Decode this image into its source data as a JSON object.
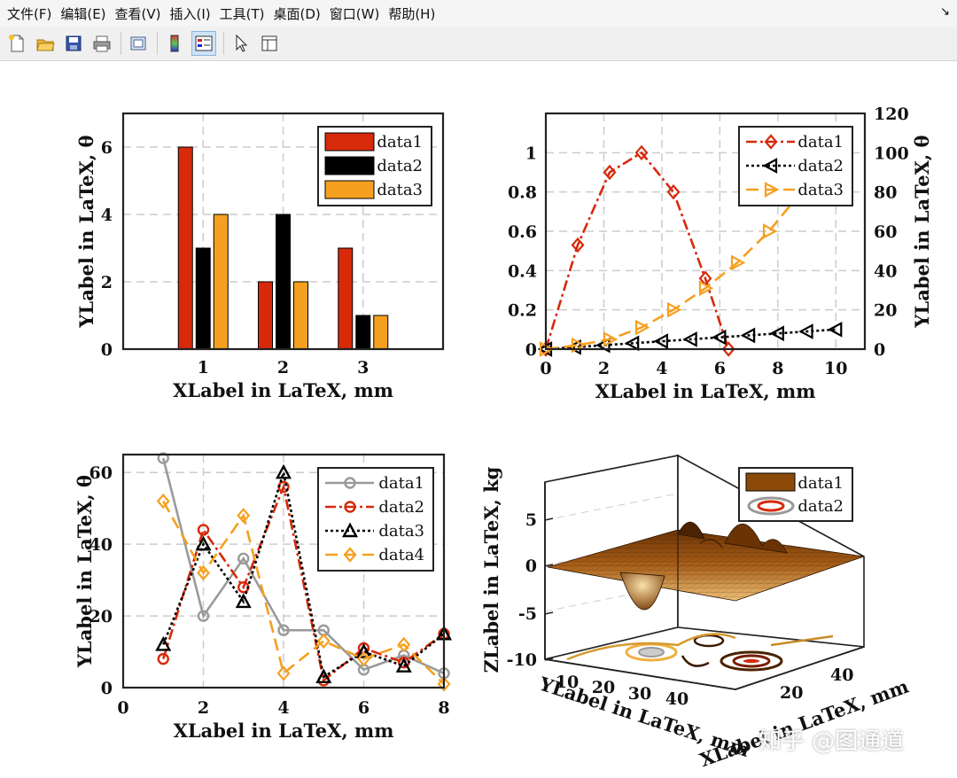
{
  "menu": [
    "文件(F)",
    "编辑(E)",
    "查看(V)",
    "插入(I)",
    "工具(T)",
    "桌面(D)",
    "窗口(W)",
    "帮助(H)"
  ],
  "menu_arrow": "↘",
  "toolbar": {
    "icons": [
      "new-file-icon",
      "open-folder-icon",
      "save-icon",
      "print-icon",
      "print-preview-icon",
      "colorbar-icon",
      "legend-icon",
      "pointer-icon",
      "property-inspector-icon"
    ]
  },
  "watermark": "知乎 @图通道",
  "colors": {
    "red": "#d62a0b",
    "black": "#000000",
    "orange": "#f5a020",
    "gray": "#9a9a9a",
    "surface": "#8b4a0a"
  },
  "chart_data": [
    {
      "type": "bar",
      "categories": [
        "1",
        "2",
        "3"
      ],
      "series": [
        {
          "name": "data1",
          "values": [
            6,
            2,
            3
          ]
        },
        {
          "name": "data2",
          "values": [
            3,
            4,
            1
          ]
        },
        {
          "name": "data3",
          "values": [
            4,
            2,
            1
          ]
        }
      ],
      "xlabel": "XLabel in LaTeX, mm",
      "ylabel": "YLabel in LaTeX, θ",
      "xlim": [
        0,
        4
      ],
      "ylim": [
        0,
        7
      ],
      "yticks": [
        "0",
        "2",
        "4",
        "6"
      ],
      "grid": true,
      "legend": "top-right"
    },
    {
      "type": "line",
      "series": [
        {
          "name": "data1",
          "axis": "left",
          "x": [
            0,
            1.1,
            2.2,
            3.3,
            4.4,
            5.5,
            6.3
          ],
          "y": [
            0,
            0.53,
            0.9,
            1.0,
            0.8,
            0.36,
            0
          ]
        },
        {
          "name": "data2",
          "axis": "right",
          "x": [
            0,
            1,
            2,
            3,
            4,
            5,
            6,
            7,
            8,
            9,
            10
          ],
          "y": [
            0,
            1,
            2,
            3,
            4,
            5,
            6,
            7,
            8,
            9,
            10
          ]
        },
        {
          "name": "data3",
          "axis": "right",
          "x": [
            0,
            1.1,
            2.2,
            3.3,
            4.4,
            5.5,
            6.6,
            7.7,
            8.8
          ],
          "y": [
            0,
            2,
            5,
            11,
            20,
            31,
            44,
            60,
            80
          ]
        }
      ],
      "xlabel": "XLabel in LaTeX, mm",
      "ylabel": "",
      "ylabel_right": "YLabel in LaTeX, θ",
      "xlim": [
        0,
        11
      ],
      "ylim": [
        0,
        1.2
      ],
      "ylim_right": [
        0,
        120
      ],
      "xticks": [
        "0",
        "2",
        "4",
        "6",
        "8",
        "10"
      ],
      "yticks": [
        "0",
        "0.2",
        "0.4",
        "0.6",
        "0.8",
        "1"
      ],
      "yticks_right": [
        "0",
        "20",
        "40",
        "60",
        "80",
        "100",
        "120"
      ],
      "grid": true,
      "legend": "top-right"
    },
    {
      "type": "line",
      "series": [
        {
          "name": "data1",
          "x": [
            1,
            2,
            3,
            4,
            5,
            6,
            7,
            8
          ],
          "y": [
            64,
            20,
            36,
            16,
            16,
            5,
            9,
            4
          ]
        },
        {
          "name": "data2",
          "x": [
            1,
            2,
            3,
            4,
            5,
            6,
            7,
            8
          ],
          "y": [
            8,
            44,
            28,
            56,
            2,
            11,
            7,
            15
          ]
        },
        {
          "name": "data3",
          "x": [
            1,
            2,
            3,
            4,
            5,
            6,
            7,
            8
          ],
          "y": [
            12,
            40,
            24,
            60,
            3,
            10,
            6,
            15
          ]
        },
        {
          "name": "data4",
          "x": [
            1,
            2,
            3,
            4,
            5,
            6,
            7,
            8
          ],
          "y": [
            52,
            32,
            48,
            4,
            13,
            8,
            12,
            1
          ]
        }
      ],
      "xlabel": "XLabel in LaTeX, mm",
      "ylabel": "YLabel in LaTeX, θ",
      "xlim": [
        0,
        8
      ],
      "ylim": [
        0,
        65
      ],
      "xticks": [
        "0",
        "2",
        "4",
        "6",
        "8"
      ],
      "yticks": [
        "0",
        "20",
        "40",
        "60"
      ],
      "grid": true,
      "legend": "top-right"
    },
    {
      "type": "surface",
      "series": [
        {
          "name": "data1"
        },
        {
          "name": "data2"
        }
      ],
      "xlabel": "XLabel in LaTeX, mm",
      "ylabel": "YLabel in LaTeX, mm",
      "zlabel": "ZLabel in LaTeX, kg",
      "zticks": [
        "-10",
        "-5",
        "0",
        "5"
      ],
      "yticks": [
        "10",
        "20",
        "30",
        "40"
      ],
      "xticks": [
        "20",
        "40"
      ],
      "grid": true,
      "legend": "top-right"
    }
  ]
}
